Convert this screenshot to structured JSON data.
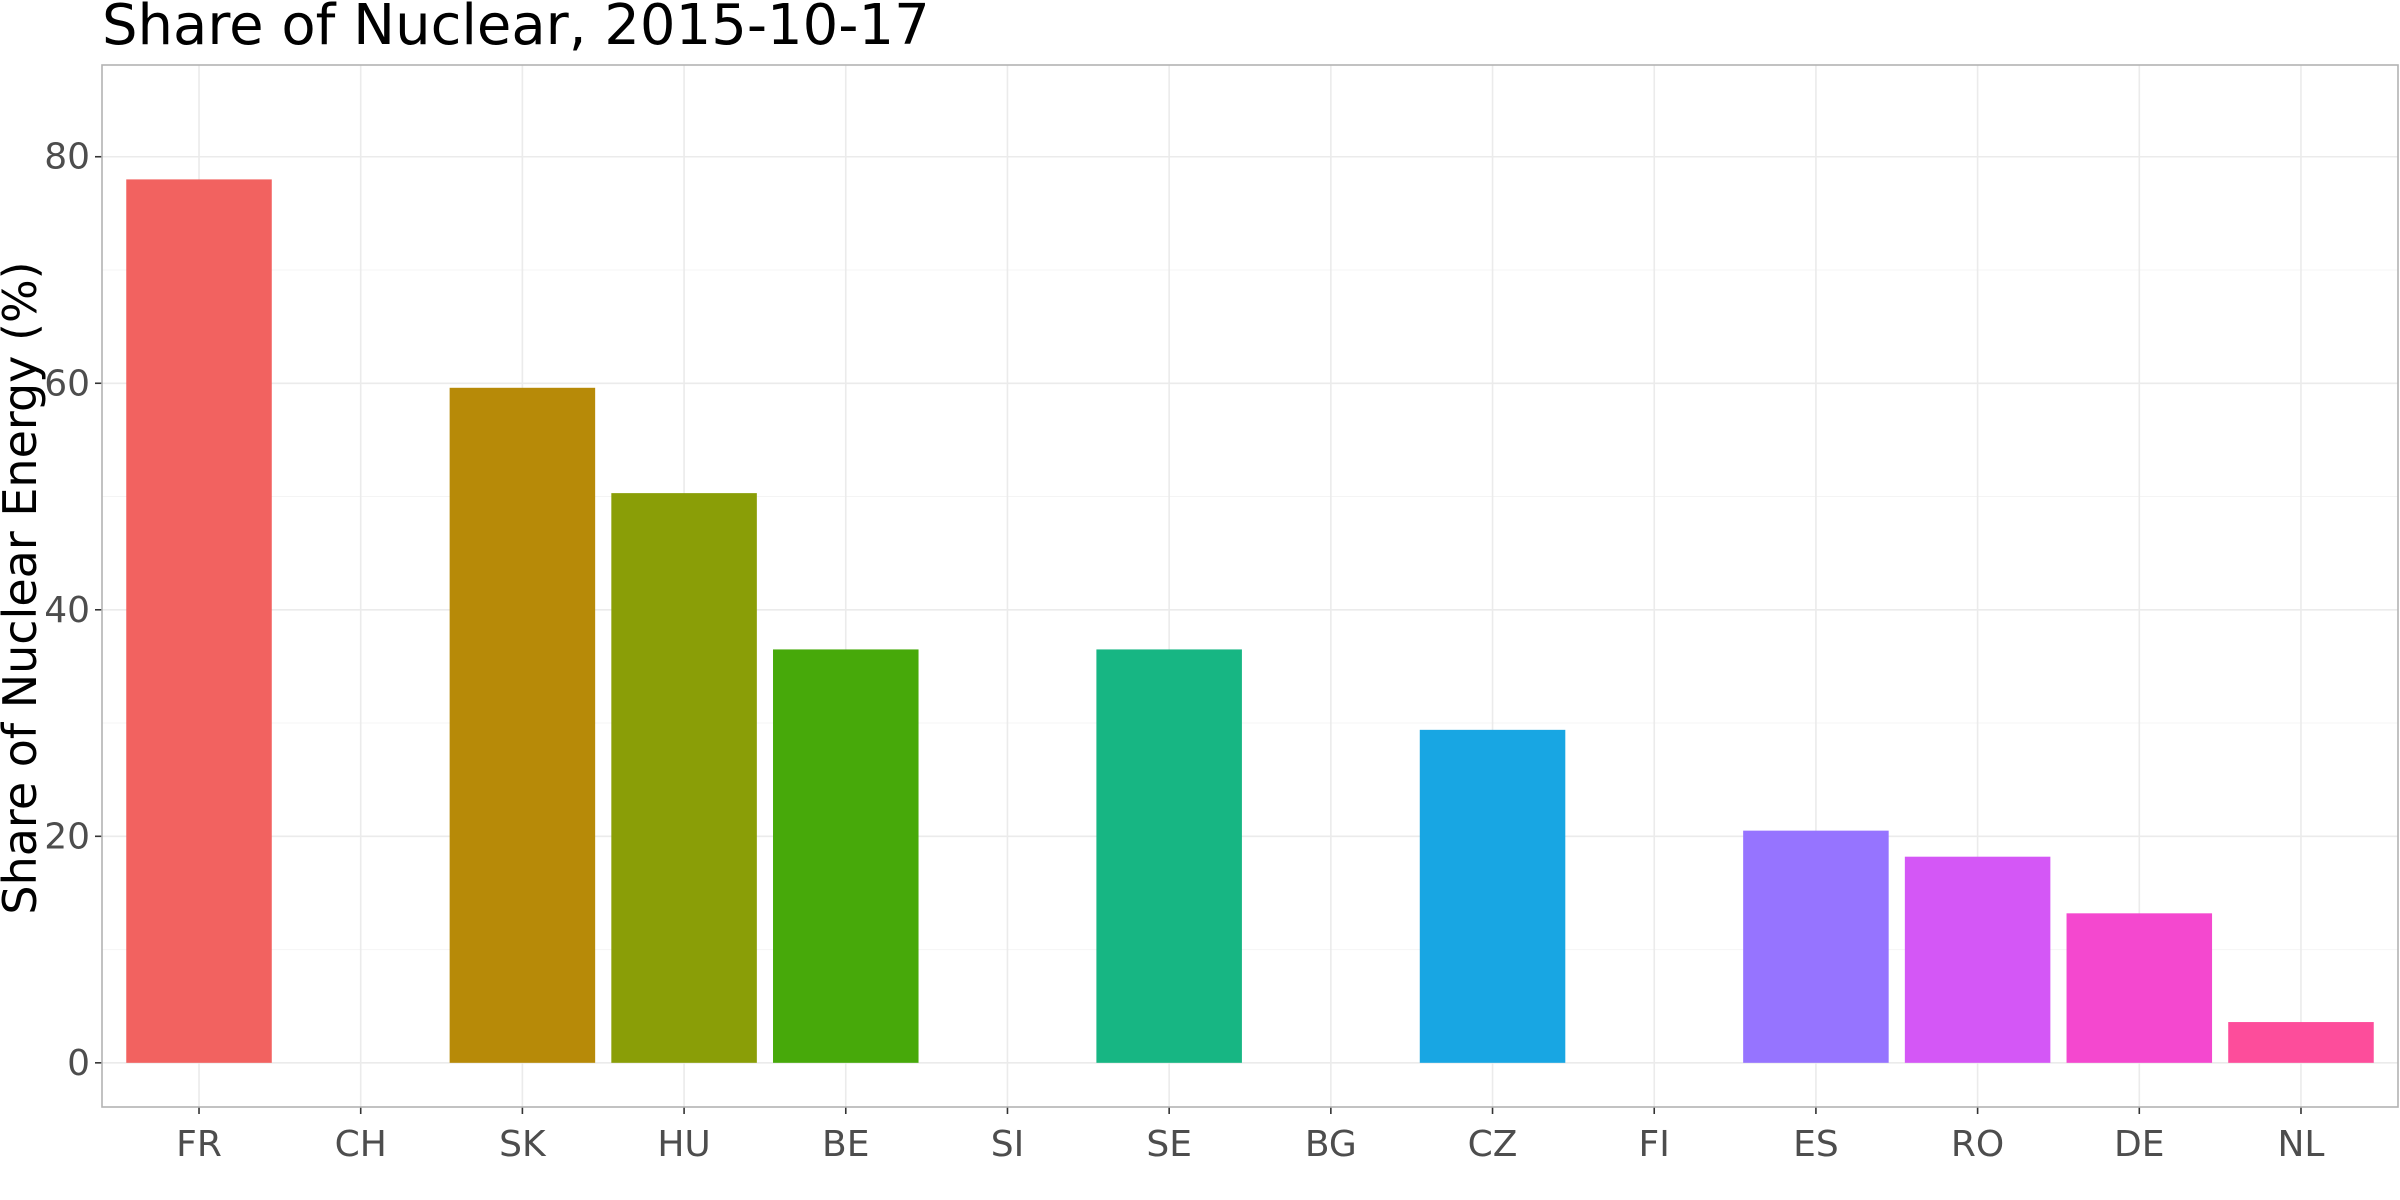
{
  "chart_data": {
    "type": "bar",
    "title": "Share of Nuclear, 2015-10-17",
    "xlabel": "",
    "ylabel": "Share of Nuclear Energy (%)",
    "categories": [
      "FR",
      "CH",
      "SK",
      "HU",
      "BE",
      "SI",
      "SE",
      "BG",
      "CZ",
      "FI",
      "ES",
      "RO",
      "DE",
      "NL"
    ],
    "values": [
      78,
      0,
      59.6,
      50.3,
      36.5,
      0,
      36.5,
      0,
      29.4,
      0,
      20.5,
      18.2,
      13.2,
      3.6
    ],
    "colors": [
      "#F26260",
      "#E17E3B",
      "#B78A08",
      "#8A9E07",
      "#47A90A",
      "#20B250",
      "#17B683",
      "#16B4B4",
      "#18A6E3",
      "#5A8EF7",
      "#9674FF",
      "#D457F6",
      "#F448CF",
      "#FD4D9B"
    ],
    "yticks": [
      0,
      20,
      40,
      60,
      80
    ],
    "ylim": [
      -3.9,
      88.1
    ],
    "grid": true,
    "legend": "none"
  }
}
